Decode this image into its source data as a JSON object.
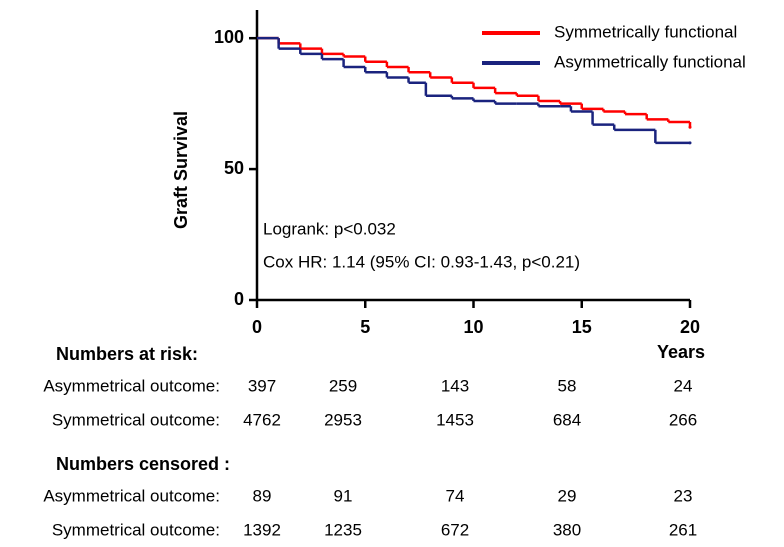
{
  "chart_data": {
    "type": "step",
    "y_label": "Graft Survival",
    "x_label": "Years",
    "xlim": [
      0,
      20
    ],
    "xticks": [
      0,
      5,
      10,
      15,
      20
    ],
    "ylim": [
      0,
      110
    ],
    "yticks": [
      0,
      50,
      100
    ],
    "legend": "top-right",
    "annotations": [
      "Logrank: p<0.032",
      "Cox HR: 1.14 (95% CI: 0.93-1.43, p<0.21)"
    ],
    "series": [
      {
        "name": "Symmetrically functional",
        "color": "#ff0000",
        "x": [
          0,
          1,
          2,
          3,
          4,
          5,
          6,
          7,
          8,
          9,
          10,
          11,
          12,
          13,
          14,
          15,
          16,
          17,
          18,
          19,
          20
        ],
        "values": [
          100,
          98,
          96,
          94,
          93,
          91,
          89,
          87,
          85,
          83,
          81,
          79,
          78,
          76,
          75,
          73,
          72,
          71,
          69,
          68,
          66
        ]
      },
      {
        "name": "Asymmetrically functional",
        "color": "#1a237e",
        "x": [
          0,
          1,
          2,
          3,
          4,
          5,
          6,
          7,
          7.8,
          9,
          10,
          11,
          12,
          13,
          14,
          14.5,
          15.5,
          16.5,
          18.4,
          20
        ],
        "values": [
          100,
          96,
          94,
          92,
          89,
          87,
          85,
          83,
          78,
          77,
          76,
          75,
          75,
          74,
          74,
          72,
          67,
          65,
          60,
          60
        ]
      }
    ],
    "tables": [
      {
        "title": "Numbers at risk:",
        "rows": [
          {
            "label": "Asymmetrical outcome:",
            "values": [
              397,
              259,
              143,
              58,
              24
            ]
          },
          {
            "label": "Symmetrical outcome:",
            "values": [
              4762,
              2953,
              1453,
              684,
              266
            ]
          }
        ]
      },
      {
        "title": "Numbers censored :",
        "rows": [
          {
            "label": "Asymmetrical outcome:",
            "values": [
              89,
              91,
              74,
              29,
              23
            ]
          },
          {
            "label": "Symmetrical outcome:",
            "values": [
              1392,
              1235,
              672,
              380,
              261
            ]
          }
        ]
      }
    ]
  }
}
